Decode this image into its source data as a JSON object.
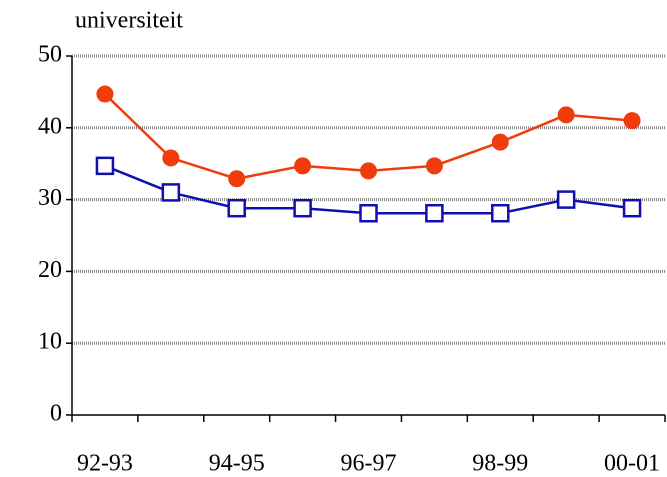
{
  "chart_data": {
    "type": "line",
    "title": "universiteit",
    "categories": [
      "92-93",
      null,
      "94-95",
      null,
      "96-97",
      null,
      "98-99",
      null,
      "00-01"
    ],
    "series": [
      {
        "color": "#f03c0a",
        "marker": "circle",
        "values": [
          44.7,
          35.8,
          32.9,
          34.7,
          34.0,
          34.7,
          38.0,
          41.8,
          41.0
        ]
      },
      {
        "color": "#1010b0",
        "marker": "square",
        "values": [
          34.7,
          31.0,
          28.8,
          28.8,
          28.1,
          28.1,
          28.1,
          30.0,
          28.8
        ]
      }
    ],
    "ylim": [
      0,
      50
    ],
    "yticks": [
      0,
      10,
      20,
      30,
      40,
      50
    ],
    "grid": true
  }
}
